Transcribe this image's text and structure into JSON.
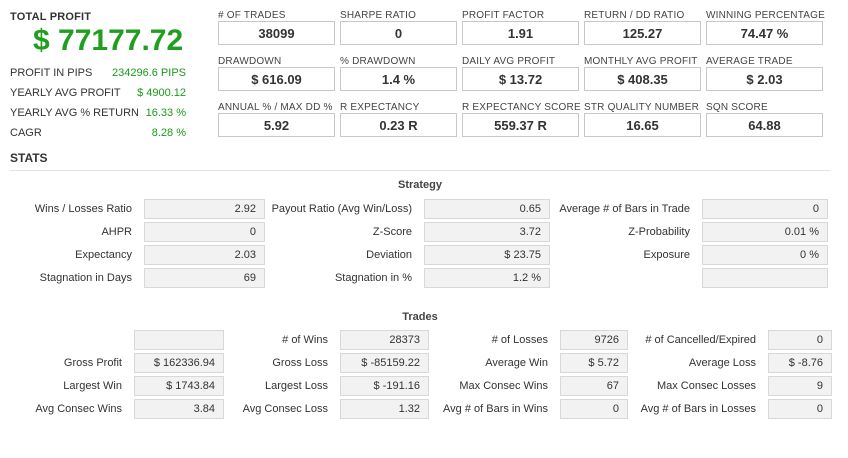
{
  "summary": {
    "total_profit_label": "TOTAL PROFIT",
    "total_profit_value": "$ 77177.72",
    "rows": [
      {
        "label": "PROFIT IN PIPS",
        "value": "234296.6 PIPS"
      },
      {
        "label": "YEARLY AVG PROFIT",
        "value": "$ 4900.12"
      },
      {
        "label": "YEARLY AVG % RETURN",
        "value": "16.33 %"
      },
      {
        "label": "CAGR",
        "value": "8.28 %"
      }
    ]
  },
  "metrics": [
    {
      "label": "# OF TRADES",
      "value": "38099"
    },
    {
      "label": "SHARPE RATIO",
      "value": "0"
    },
    {
      "label": "PROFIT FACTOR",
      "value": "1.91"
    },
    {
      "label": "RETURN / DD RATIO",
      "value": "125.27"
    },
    {
      "label": "WINNING PERCENTAGE",
      "value": "74.47 %"
    },
    {
      "label": "DRAWDOWN",
      "value": "$ 616.09"
    },
    {
      "label": "% DRAWDOWN",
      "value": "1.4 %"
    },
    {
      "label": "DAILY AVG PROFIT",
      "value": "$ 13.72"
    },
    {
      "label": "MONTHLY AVG PROFIT",
      "value": "$ 408.35"
    },
    {
      "label": "AVERAGE TRADE",
      "value": "$ 2.03"
    },
    {
      "label": "ANNUAL % / MAX DD %",
      "value": "5.92"
    },
    {
      "label": "R EXPECTANCY",
      "value": "0.23 R"
    },
    {
      "label": "R EXPECTANCY SCORE",
      "value": "559.37 R"
    },
    {
      "label": "STR QUALITY NUMBER",
      "value": "16.65"
    },
    {
      "label": "SQN SCORE",
      "value": "64.88"
    }
  ],
  "stats": {
    "heading": "STATS",
    "strategy": {
      "title": "Strategy",
      "rows": [
        [
          {
            "label": "Wins / Losses Ratio",
            "value": "2.92"
          },
          {
            "label": "Payout Ratio (Avg Win/Loss)",
            "value": "0.65"
          },
          {
            "label": "Average # of Bars in Trade",
            "value": "0"
          }
        ],
        [
          {
            "label": "AHPR",
            "value": "0"
          },
          {
            "label": "Z-Score",
            "value": "3.72"
          },
          {
            "label": "Z-Probability",
            "value": "0.01 %"
          }
        ],
        [
          {
            "label": "Expectancy",
            "value": "2.03"
          },
          {
            "label": "Deviation",
            "value": "$ 23.75"
          },
          {
            "label": "Exposure",
            "value": "0 %"
          }
        ],
        [
          {
            "label": "Stagnation in Days",
            "value": "69"
          },
          {
            "label": "Stagnation in %",
            "value": "1.2 %"
          },
          {
            "label": "",
            "value": ""
          }
        ]
      ]
    },
    "trades": {
      "title": "Trades",
      "rows": [
        [
          {
            "label": "",
            "value": ""
          },
          {
            "label": "# of Wins",
            "value": "28373"
          },
          {
            "label": "# of Losses",
            "value": "9726"
          },
          {
            "label": "# of Cancelled/Expired",
            "value": "0"
          }
        ],
        [
          {
            "label": "Gross Profit",
            "value": "$ 162336.94"
          },
          {
            "label": "Gross Loss",
            "value": "$ -85159.22"
          },
          {
            "label": "Average Win",
            "value": "$ 5.72"
          },
          {
            "label": "Average Loss",
            "value": "$ -8.76"
          }
        ],
        [
          {
            "label": "Largest Win",
            "value": "$ 1743.84"
          },
          {
            "label": "Largest Loss",
            "value": "$ -191.16"
          },
          {
            "label": "Max Consec Wins",
            "value": "67"
          },
          {
            "label": "Max Consec Losses",
            "value": "9"
          }
        ],
        [
          {
            "label": "Avg Consec Wins",
            "value": "3.84"
          },
          {
            "label": "Avg Consec Loss",
            "value": "1.32"
          },
          {
            "label": "Avg # of Bars in Wins",
            "value": "0"
          },
          {
            "label": "Avg # of Bars in Losses",
            "value": "0"
          }
        ]
      ]
    }
  }
}
